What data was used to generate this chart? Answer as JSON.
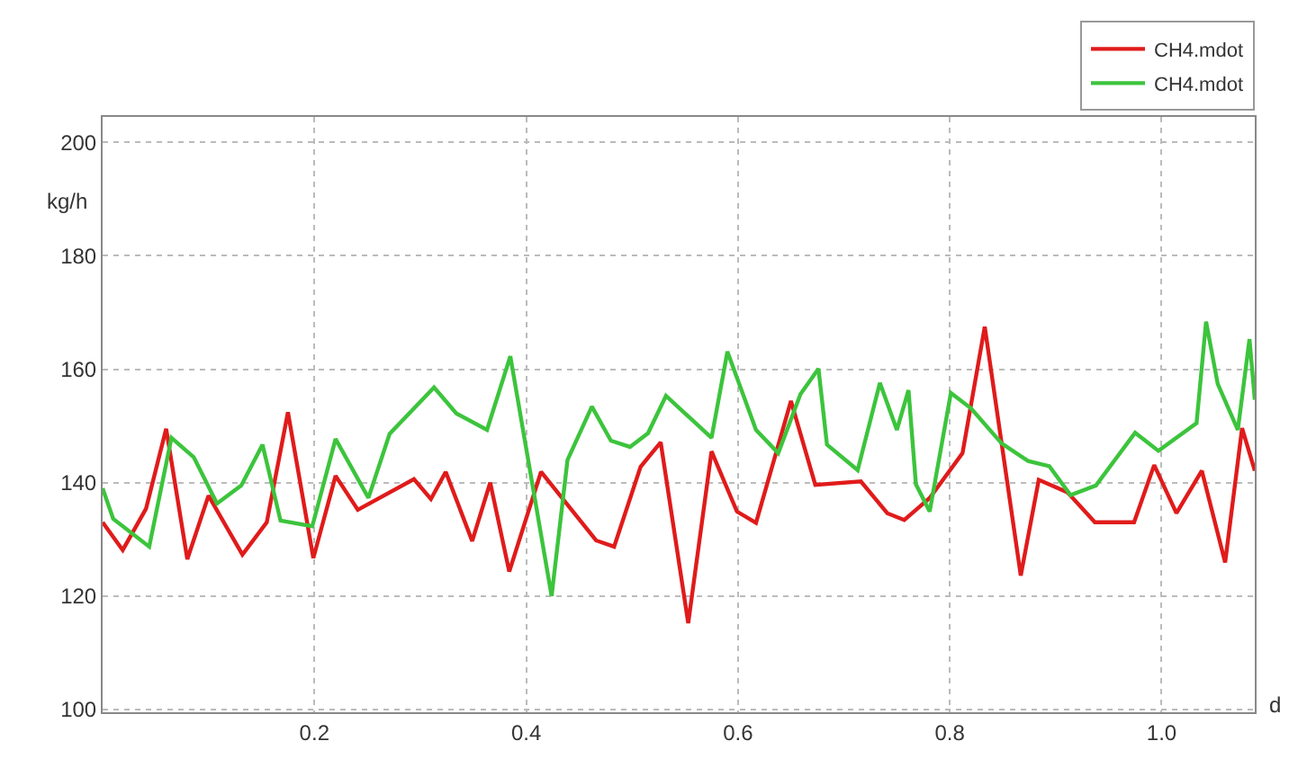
{
  "chart_data": {
    "type": "line",
    "xlabel": "d",
    "ylabel": "kg/h",
    "xlim": [
      0,
      1.088
    ],
    "xticks": [
      0.2,
      0.4,
      0.6,
      0.8,
      {
        "value": 1,
        "label": "1.0"
      }
    ],
    "ylim": [
      99.5,
      204.5
    ],
    "yticks": [
      100,
      120,
      140,
      160,
      180,
      200
    ],
    "grid": true,
    "legend": "top right",
    "line_style": "solid",
    "series": [
      {
        "name": "CH4.mdot",
        "color": "#e01b1b",
        "x": [
          0,
          0.019,
          0.041,
          0.06,
          0.08,
          0.1,
          0.132,
          0.155,
          0.175,
          0.199,
          0.22,
          0.241,
          0.294,
          0.31,
          0.324,
          0.349,
          0.366,
          0.384,
          0.414,
          0.466,
          0.483,
          0.508,
          0.527,
          0.553,
          0.575,
          0.599,
          0.617,
          0.65,
          0.673,
          0.716,
          0.741,
          0.757,
          0.781,
          0.812,
          0.833,
          0.867,
          0.884,
          0.911,
          0.937,
          0.974,
          0.993,
          1.014,
          1.038,
          1.06,
          1.076,
          1.088
        ],
        "values": [
          133,
          128.1,
          135.4,
          149.5,
          126.5,
          137.7,
          127.3,
          133,
          152.4,
          126.7,
          141.2,
          135.2,
          140.6,
          137.1,
          141.9,
          129.7,
          140,
          124.3,
          141.9,
          129.8,
          128.7,
          142.8,
          147.1,
          115.2,
          145.5,
          134.9,
          132.9,
          154.4,
          139.6,
          140.2,
          134.6,
          133.4,
          137.3,
          145.2,
          167.5,
          123.6,
          140.5,
          138.3,
          133,
          133,
          143.1,
          134.6,
          142.1,
          125.9,
          149.6,
          142.1
        ]
      },
      {
        "name": "CH4.mdot",
        "color": "#3cc43c",
        "x": [
          0,
          0.01,
          0.044,
          0.065,
          0.086,
          0.108,
          0.131,
          0.151,
          0.168,
          0.198,
          0.22,
          0.251,
          0.271,
          0.313,
          0.334,
          0.363,
          0.385,
          0.424,
          0.439,
          0.462,
          0.48,
          0.498,
          0.515,
          0.532,
          0.575,
          0.59,
          0.617,
          0.638,
          0.659,
          0.676,
          0.684,
          0.713,
          0.734,
          0.75,
          0.761,
          0.768,
          0.781,
          0.801,
          0.82,
          0.849,
          0.874,
          0.894,
          0.914,
          0.938,
          0.975,
          0.997,
          1.033,
          1.042,
          1.053,
          1.072,
          1.083,
          1.088
        ],
        "values": [
          139,
          133.6,
          128.7,
          147.9,
          144.5,
          136.3,
          139.5,
          146.7,
          133.3,
          132.3,
          147.7,
          137.3,
          148.6,
          156.8,
          152.2,
          149.3,
          162.3,
          120,
          144,
          153.4,
          147.4,
          146.3,
          148.7,
          155.3,
          147.9,
          163.1,
          149.3,
          145.2,
          155.6,
          160.1,
          146.7,
          142.2,
          157.6,
          149.3,
          156.3,
          139.7,
          134.9,
          155.8,
          153.1,
          146.9,
          143.8,
          142.9,
          137.8,
          139.5,
          148.8,
          145.6,
          150.5,
          168.4,
          157.4,
          149.3,
          165.3,
          154.6
        ]
      }
    ]
  }
}
